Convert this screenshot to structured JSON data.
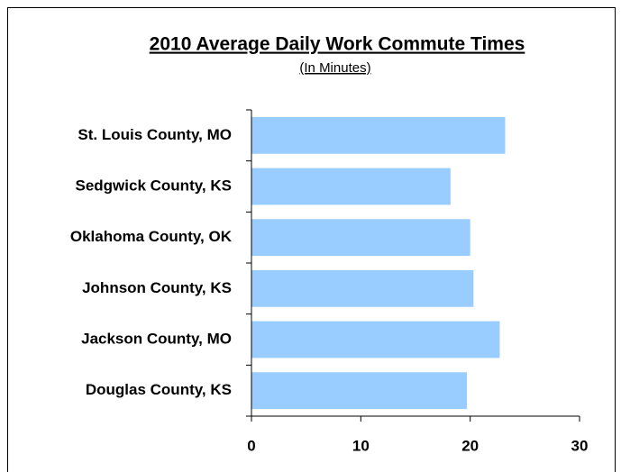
{
  "chart_data": {
    "type": "barh",
    "title": "2010 Average Daily Work Commute Times",
    "subtitle": "(In Minutes)",
    "categories": [
      "St. Louis County, MO",
      "Sedgwick County, KS",
      "Oklahoma County, OK",
      "Johnson County, KS",
      "Jackson County, MO",
      "Douglas County, KS"
    ],
    "values": [
      23.2,
      18.2,
      20.0,
      20.3,
      22.7,
      19.7
    ],
    "color": "#99ccff",
    "xlim": [
      0,
      30
    ],
    "xticks": [
      0,
      10,
      20,
      30
    ],
    "grid": false
  }
}
